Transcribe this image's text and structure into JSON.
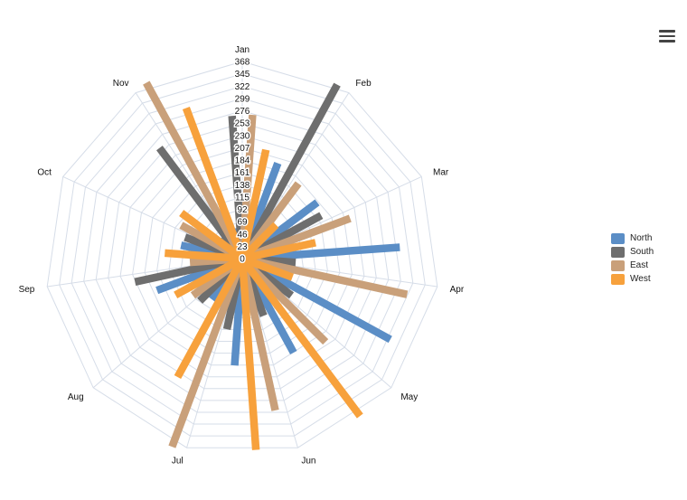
{
  "menu": {
    "icon": "hamburger-menu-icon"
  },
  "chart_data": {
    "type": "polar-bar",
    "categories": [
      "Jan",
      "Feb",
      "Mar",
      "Apr",
      "May",
      "Jun",
      "Jul",
      "Aug",
      "Sep",
      "Oct",
      "Nov"
    ],
    "radial_ticks": [
      "0",
      "23",
      "46",
      "69",
      "92",
      "115",
      "138",
      "161",
      "184",
      "207",
      "230",
      "253",
      "276",
      "299",
      "322",
      "345",
      "368"
    ],
    "rmax": 368,
    "series": [
      {
        "name": "North",
        "color": "#5b8ec6",
        "values": [
          58,
          190,
          175,
          295,
          315,
          200,
          200,
          95,
          170,
          117,
          55
        ]
      },
      {
        "name": "South",
        "color": "#6e6e6e",
        "values": [
          267,
          370,
          168,
          100,
          115,
          114,
          135,
          112,
          205,
          114,
          258
        ]
      },
      {
        "name": "East",
        "color": "#c9a07a",
        "values": [
          269,
          175,
          215,
          315,
          220,
          290,
          375,
          115,
          98,
          130,
          374
        ]
      },
      {
        "name": "West",
        "color": "#f7a13c",
        "values": [
          208,
          89,
          140,
          100,
          367,
          358,
          252,
          142,
          145,
          142,
          300
        ]
      }
    ],
    "legend_position": "right"
  }
}
